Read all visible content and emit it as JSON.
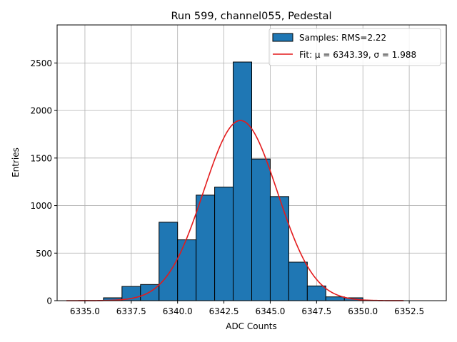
{
  "chart_data": {
    "type": "bar",
    "title": "Run 599, channel055, Pedestal",
    "xlabel": "ADC Counts",
    "ylabel": "Entries",
    "xlim": [
      6333.5,
      6354.5
    ],
    "ylim": [
      0,
      2900
    ],
    "grid": true,
    "x_ticks": [
      6335.0,
      6337.5,
      6340.0,
      6342.5,
      6345.0,
      6347.5,
      6350.0,
      6352.5
    ],
    "x_tick_labels": [
      "6335.0",
      "6337.5",
      "6340.0",
      "6342.5",
      "6345.0",
      "6347.5",
      "6350.0",
      "6352.5"
    ],
    "y_ticks": [
      0,
      500,
      1000,
      1500,
      2000,
      2500
    ],
    "y_tick_labels": [
      "0",
      "500",
      "1000",
      "1500",
      "2000",
      "2500"
    ],
    "bins": {
      "edges": [
        6336.0,
        6337.0,
        6338.0,
        6339.0,
        6340.0,
        6341.0,
        6342.0,
        6343.0,
        6344.0,
        6345.0,
        6346.0,
        6347.0,
        6348.0,
        6349.0,
        6350.0
      ],
      "counts": [
        30,
        150,
        170,
        825,
        640,
        1110,
        1195,
        2510,
        1490,
        1095,
        405,
        155,
        40,
        30
      ]
    },
    "series": [
      {
        "name": "Samples: RMS=2.22",
        "kind": "histogram",
        "color": "#1f77b4"
      },
      {
        "name": "Fit: μ = 6343.39, σ = 1.988",
        "kind": "gaussian",
        "color": "#e31a1c",
        "mu": 6343.39,
        "sigma": 1.988,
        "amplitude": 1895,
        "x_range": [
          6334.0,
          6352.2
        ]
      }
    ],
    "legend_position": "top-right"
  }
}
